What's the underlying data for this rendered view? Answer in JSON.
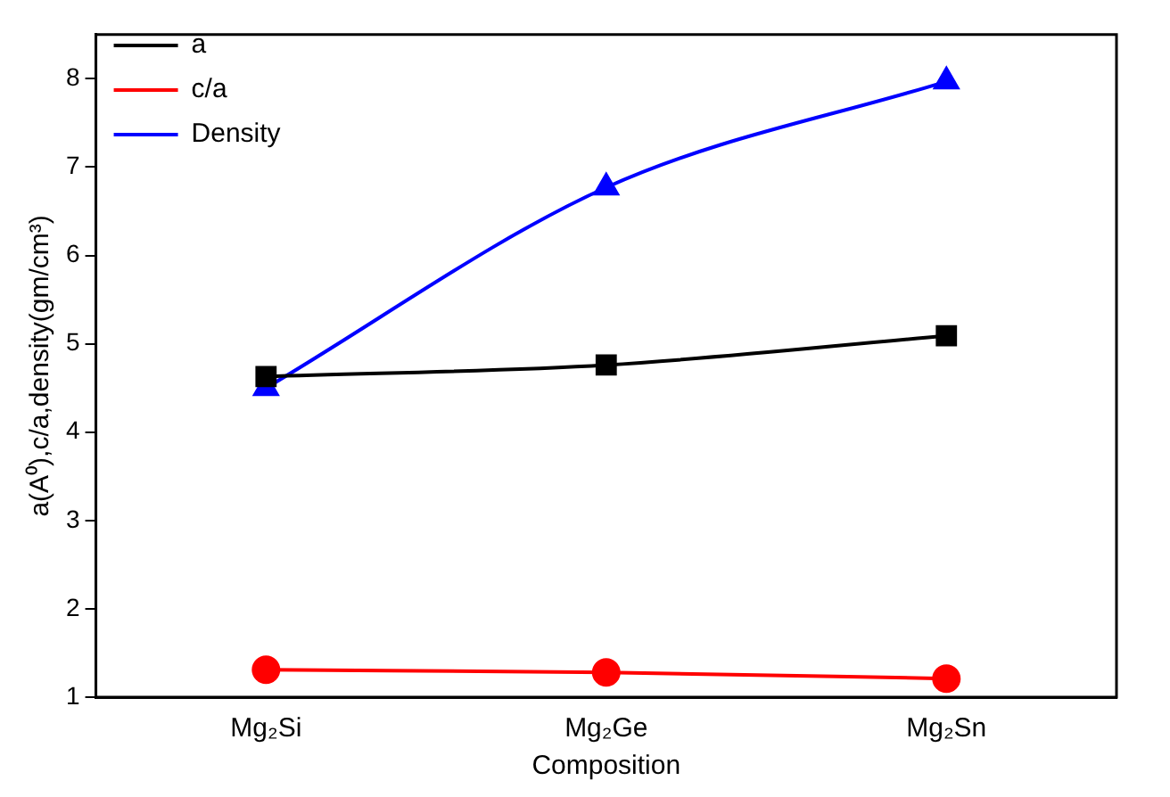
{
  "chart_data": {
    "type": "line",
    "xlabel": "Composition",
    "ylabel": "a(A⁰),c/a,density(gm/cm³)",
    "categories": [
      "Mg₂Si",
      "Mg₂Ge",
      "Mg₂Sn"
    ],
    "series": [
      {
        "name": "a",
        "color": "#000000",
        "values": [
          4.63,
          4.76,
          5.09
        ],
        "marker": "square"
      },
      {
        "name": "c/a",
        "color": "#ff0000",
        "values": [
          1.31,
          1.28,
          1.21
        ],
        "marker": "circle"
      },
      {
        "name": "Density",
        "color": "#0000ff",
        "values": [
          4.5,
          6.77,
          7.97
        ],
        "marker": "triangle"
      }
    ],
    "ylim": [
      1,
      8.5
    ],
    "yticks": [
      1,
      2,
      3,
      4,
      5,
      6,
      7,
      8
    ],
    "legend": "top left",
    "grid": false
  }
}
